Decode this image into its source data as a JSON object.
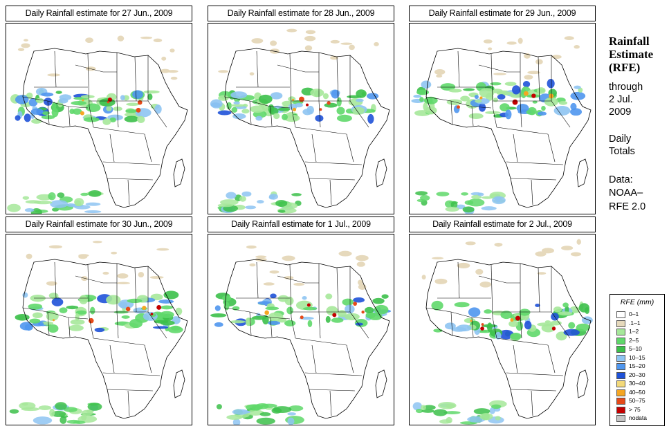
{
  "panels": [
    {
      "title": "Daily Rainfall estimate for  27 Jun., 2009"
    },
    {
      "title": "Daily Rainfall estimate for  28 Jun., 2009"
    },
    {
      "title": "Daily Rainfall estimate for  29 Jun., 2009"
    },
    {
      "title": "Daily Rainfall estimate for  30 Jun., 2009"
    },
    {
      "title": "Daily Rainfall estimate for  1 Jul., 2009"
    },
    {
      "title": "Daily Rainfall estimate for  2 Jul., 2009"
    }
  ],
  "sidebar": {
    "title_line1": "Rainfall",
    "title_line2": "Estimate",
    "title_line3": "(RFE)",
    "through": "through",
    "date_line1": "2 Jul.",
    "date_line2": "2009",
    "daily": "Daily",
    "totals": "Totals",
    "data_label": "Data:",
    "source_line1": "NOAA–",
    "source_line2": "RFE 2.0"
  },
  "legend": {
    "title": "RFE (mm)",
    "items": [
      {
        "label": "0–1",
        "color": "#ffffff"
      },
      {
        "label": ".1–1",
        "color": "#e6d9bc"
      },
      {
        "label": "1–2",
        "color": "#a6e89a"
      },
      {
        "label": "2–5",
        "color": "#5fd86a"
      },
      {
        "label": "5–10",
        "color": "#3cc04a"
      },
      {
        "label": "10–15",
        "color": "#8ec4f2"
      },
      {
        "label": "15–20",
        "color": "#4f96ee"
      },
      {
        "label": "20–30",
        "color": "#1f52d8"
      },
      {
        "label": "30–40",
        "color": "#f3d97a"
      },
      {
        "label": "40–50",
        "color": "#f5a623"
      },
      {
        "label": "50–75",
        "color": "#e64a19"
      },
      {
        "label": "> 75",
        "color": "#c40000"
      },
      {
        "label": "nodata",
        "color": "#c4c4c4"
      }
    ]
  }
}
